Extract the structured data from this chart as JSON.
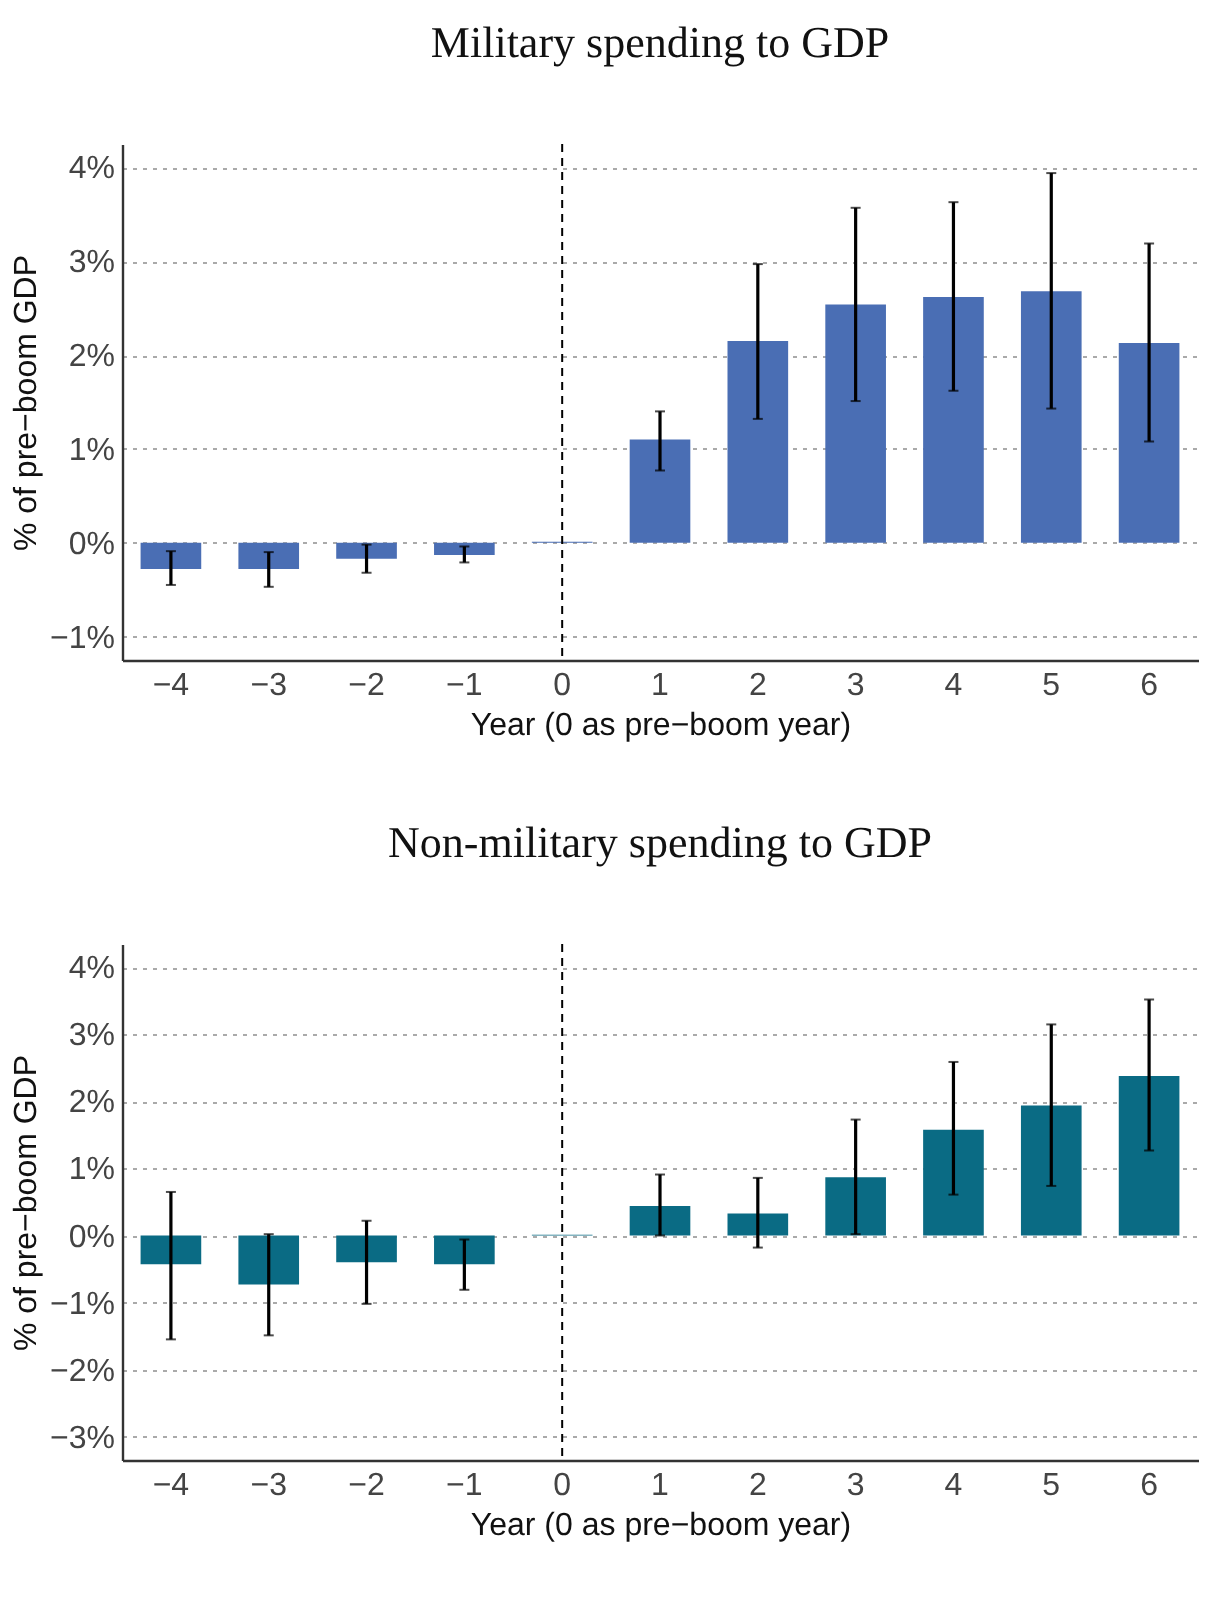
{
  "chart_data": [
    {
      "type": "bar",
      "title": "Military spending to GDP",
      "xlabel": "Year (0 as pre−boom year)",
      "ylabel": "% of pre−boom GDP",
      "categories": [
        "−4",
        "−3",
        "−2",
        "−1",
        "0",
        "1",
        "2",
        "3",
        "4",
        "5",
        "6"
      ],
      "series": [
        {
          "color": "#4a6eb4",
          "values": [
            -0.28,
            -0.28,
            -0.17,
            -0.13,
            0.01,
            1.1,
            2.15,
            2.54,
            2.62,
            2.68,
            2.13
          ],
          "errors": [
            [
              -0.45,
              -0.09
            ],
            [
              -0.47,
              -0.1
            ],
            [
              -0.32,
              -0.02
            ],
            [
              -0.21,
              -0.04
            ],
            null,
            [
              0.77,
              1.4
            ],
            [
              1.32,
              2.97
            ],
            [
              1.51,
              3.57
            ],
            [
              1.62,
              3.63
            ],
            [
              1.43,
              3.94
            ],
            [
              1.08,
              3.19
            ]
          ]
        }
      ],
      "ylim": [
        -1.25,
        4.25
      ],
      "yticks": [
        {
          "value": -1,
          "label": "−1%"
        },
        {
          "value": 0,
          "label": "0%"
        },
        {
          "value": 1,
          "label": "1%"
        },
        {
          "value": 2,
          "label": "2%"
        },
        {
          "value": 3,
          "label": "3%"
        },
        {
          "value": 4,
          "label": "4%"
        }
      ],
      "grid": "y",
      "ref_lines": [
        {
          "axis": "x",
          "value": "0",
          "line_style": "dashed"
        }
      ]
    },
    {
      "type": "bar",
      "title": "Non-military spending to GDP",
      "xlabel": "Year (0 as pre−boom year)",
      "ylabel": "% of pre−boom GDP",
      "categories": [
        "−4",
        "−3",
        "−2",
        "−1",
        "0",
        "1",
        "2",
        "3",
        "4",
        "5",
        "6"
      ],
      "series": [
        {
          "color": "#0a6b84",
          "values": [
            -0.43,
            -0.73,
            -0.4,
            -0.43,
            0.01,
            0.44,
            0.33,
            0.87,
            1.58,
            1.94,
            2.38
          ],
          "errors": [
            [
              -1.55,
              0.65
            ],
            [
              -1.49,
              0.02
            ],
            [
              -1.02,
              0.22
            ],
            [
              -0.81,
              -0.06
            ],
            null,
            [
              0.0,
              0.91
            ],
            [
              -0.18,
              0.86
            ],
            [
              0.02,
              1.73
            ],
            [
              0.61,
              2.59
            ],
            [
              0.74,
              3.15
            ],
            [
              1.27,
              3.52
            ]
          ]
        }
      ],
      "ylim": [
        -3.35,
        4.35
      ],
      "yticks": [
        {
          "value": -3,
          "label": "−3%"
        },
        {
          "value": -2,
          "label": "−2%"
        },
        {
          "value": -1,
          "label": "−1%"
        },
        {
          "value": 0,
          "label": "0%"
        },
        {
          "value": 1,
          "label": "1%"
        },
        {
          "value": 2,
          "label": "2%"
        },
        {
          "value": 3,
          "label": "3%"
        },
        {
          "value": 4,
          "label": "4%"
        }
      ],
      "grid": "y",
      "ref_lines": [
        {
          "axis": "x",
          "value": "0",
          "line_style": "dashed"
        }
      ]
    }
  ]
}
